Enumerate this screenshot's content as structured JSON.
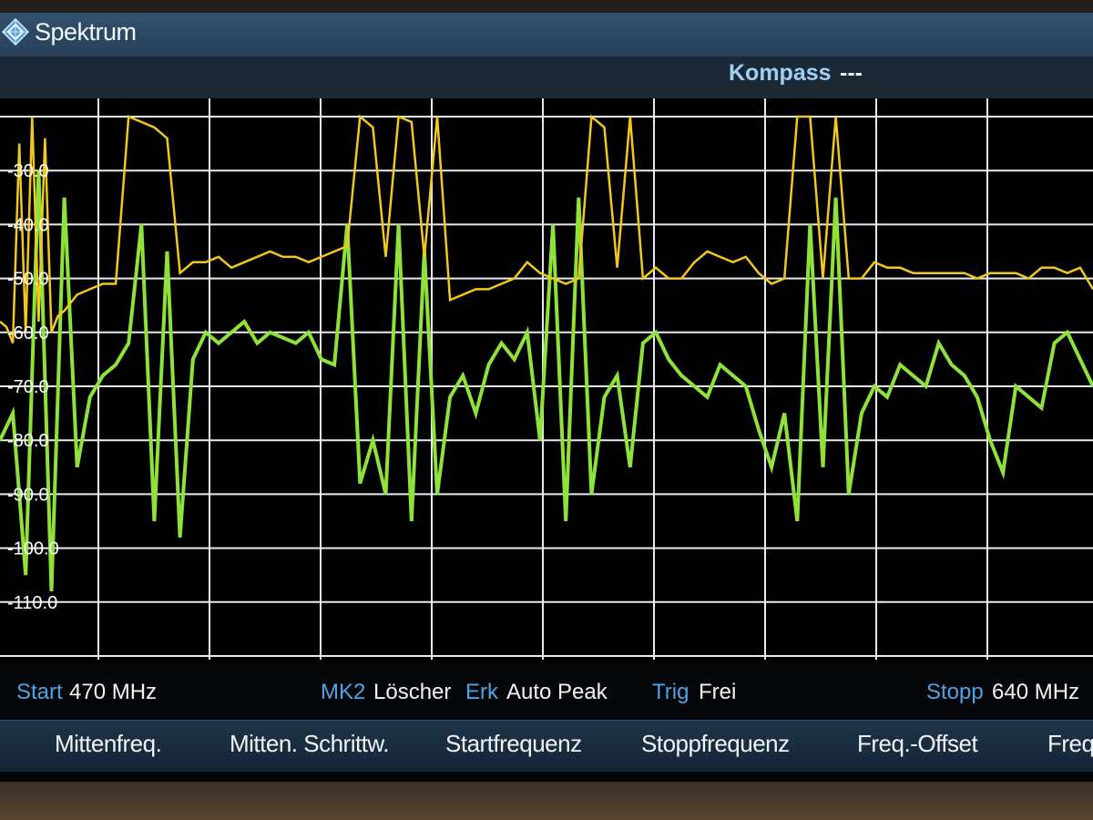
{
  "app": {
    "title": "Spektrum",
    "logo_icon": "rohde-schwarz-diamond-icon"
  },
  "infobar": {
    "compass_label": "Kompass",
    "compass_value": "---"
  },
  "status": {
    "start_label": "Start",
    "start_value": "470 MHz",
    "marker_label": "MK2",
    "marker_value": "Löscher",
    "detector_label": "Erk",
    "detector_value": "Auto Peak",
    "trigger_label": "Trig",
    "trigger_value": "Frei",
    "stop_label": "Stopp",
    "stop_value": "640 MHz"
  },
  "softkeys": [
    {
      "label": "Mittenfreq."
    },
    {
      "label": "Mitten. Schrittw."
    },
    {
      "label": "Startfrequenz"
    },
    {
      "label": "Stoppfrequenz"
    },
    {
      "label": "Freq.-Offset"
    },
    {
      "label": "Freq"
    }
  ],
  "chart_data": {
    "type": "line",
    "x_start_mhz": 470,
    "x_stop_mhz": 640,
    "y_tick_labels": [
      "-30.0",
      "-40.0",
      "-50.0",
      "-60.0",
      "-70.0",
      "-80.0",
      "-90.0",
      "-100.0",
      "-110.0"
    ],
    "ylim": [
      -120,
      -20
    ],
    "grid": true,
    "colors": {
      "max_hold_trace": "#f2c81e",
      "live_trace": "#8ee23a",
      "grid": "#e8ecf0"
    },
    "series": [
      {
        "color_key": "max_hold_trace",
        "x": [
          470,
          471,
          472,
          473,
          474,
          475,
          476,
          477,
          478,
          479,
          480,
          482,
          484,
          486,
          488,
          490,
          492,
          494,
          496,
          498,
          500,
          502,
          504,
          506,
          508,
          510,
          512,
          514,
          516,
          518,
          520,
          522,
          524,
          526,
          528,
          530,
          532,
          534,
          536,
          538,
          540,
          542,
          544,
          546,
          548,
          550,
          552,
          554,
          556,
          558,
          560,
          562,
          564,
          566,
          568,
          570,
          572,
          574,
          576,
          578,
          580,
          582,
          584,
          586,
          588,
          590,
          592,
          594,
          596,
          598,
          600,
          602,
          604,
          606,
          608,
          610,
          612,
          614,
          616,
          618,
          620,
          622,
          624,
          626,
          628,
          630,
          632,
          634,
          636,
          638,
          640
        ],
        "y": [
          -58,
          -59,
          -62,
          -25,
          -60,
          -20,
          -58,
          -24,
          -60,
          -57,
          -56,
          -53,
          -52,
          -51,
          -51,
          -20,
          -21,
          -22,
          -24,
          -49,
          -47,
          -47,
          -46,
          -48,
          -47,
          -46,
          -45,
          -46,
          -46,
          -47,
          -46,
          -45,
          -44,
          -20,
          -22,
          -46,
          -20,
          -21,
          -46,
          -20,
          -54,
          -53,
          -52,
          -52,
          -51,
          -50,
          -47,
          -49,
          -50,
          -51,
          -50,
          -20,
          -22,
          -48,
          -20,
          -50,
          -48,
          -50,
          -50,
          -47,
          -45,
          -46,
          -47,
          -46,
          -49,
          -51,
          -50,
          -20,
          -20,
          -50,
          -20,
          -50,
          -50,
          -47,
          -48,
          -48,
          -49,
          -49,
          -49,
          -49,
          -49,
          -50,
          -49,
          -49,
          -49,
          -50,
          -48,
          -48,
          -49,
          -48,
          -52
        ]
      },
      {
        "color_key": "live_trace",
        "x": [
          470,
          472,
          474,
          476,
          478,
          480,
          482,
          484,
          486,
          488,
          490,
          492,
          494,
          496,
          498,
          500,
          502,
          504,
          506,
          508,
          510,
          512,
          514,
          516,
          518,
          520,
          522,
          524,
          526,
          528,
          530,
          532,
          534,
          536,
          538,
          540,
          542,
          544,
          546,
          548,
          550,
          552,
          554,
          556,
          558,
          560,
          562,
          564,
          566,
          568,
          570,
          572,
          574,
          576,
          578,
          580,
          582,
          584,
          586,
          588,
          590,
          592,
          594,
          596,
          598,
          600,
          602,
          604,
          606,
          608,
          610,
          612,
          614,
          616,
          618,
          620,
          622,
          624,
          626,
          628,
          630,
          632,
          634,
          636,
          638,
          640
        ],
        "y": [
          -80,
          -75,
          -105,
          -30,
          -108,
          -35,
          -85,
          -72,
          -68,
          -66,
          -62,
          -40,
          -95,
          -45,
          -98,
          -65,
          -60,
          -62,
          -60,
          -58,
          -62,
          -60,
          -61,
          -62,
          -60,
          -65,
          -66,
          -40,
          -88,
          -80,
          -90,
          -40,
          -95,
          -45,
          -90,
          -72,
          -68,
          -75,
          -66,
          -62,
          -65,
          -60,
          -80,
          -40,
          -95,
          -35,
          -90,
          -72,
          -68,
          -85,
          -62,
          -60,
          -65,
          -68,
          -70,
          -72,
          -66,
          -68,
          -70,
          -78,
          -85,
          -75,
          -95,
          -40,
          -85,
          -35,
          -90,
          -75,
          -70,
          -72,
          -66,
          -68,
          -70,
          -62,
          -66,
          -68,
          -72,
          -80,
          -86,
          -70,
          -72,
          -74,
          -62,
          -60,
          -65,
          -70
        ]
      }
    ]
  }
}
